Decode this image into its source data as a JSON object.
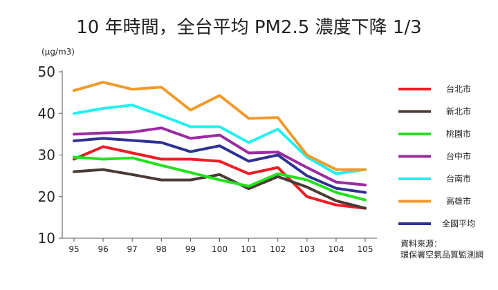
{
  "chart_data": {
    "type": "line",
    "title": "10 年時間，全台平均 PM2.5 濃度下降 1/3",
    "ylabel": "(μg/m3)",
    "xlabel": "",
    "ylim": [
      10,
      50
    ],
    "yticks": [
      "10",
      "20",
      "30",
      "40",
      "50"
    ],
    "categories": [
      "95",
      "96",
      "97",
      "98",
      "99",
      "100",
      "101",
      "102",
      "103",
      "104",
      "105"
    ],
    "grid": false,
    "legend_position": "right",
    "series": [
      {
        "name": "台北市",
        "color": "#ee1c24",
        "values": [
          29.0,
          32.0,
          30.5,
          29.0,
          29.0,
          28.5,
          25.5,
          27.0,
          20.0,
          18.0,
          17.2
        ]
      },
      {
        "name": "新北市",
        "color": "#4a3a36",
        "values": [
          26.0,
          26.5,
          25.3,
          24.0,
          24.0,
          25.3,
          21.9,
          24.8,
          22.3,
          19.0,
          17.2
        ]
      },
      {
        "name": "桃園市",
        "color": "#22e21c",
        "values": [
          29.5,
          29.0,
          29.3,
          27.5,
          25.8,
          24.0,
          22.5,
          25.5,
          24.0,
          21.0,
          19.2
        ]
      },
      {
        "name": "台中市",
        "color": "#9a2ba0",
        "values": [
          35.0,
          35.3,
          35.5,
          36.5,
          34.0,
          34.8,
          30.5,
          30.7,
          27.0,
          23.5,
          22.8
        ]
      },
      {
        "name": "台南市",
        "color": "#22f0f0",
        "values": [
          40.0,
          41.2,
          42.0,
          39.5,
          36.8,
          36.8,
          33.0,
          36.2,
          29.5,
          25.5,
          26.5
        ]
      },
      {
        "name": "高雄市",
        "color": "#f09a2a",
        "values": [
          45.5,
          47.5,
          45.8,
          46.3,
          40.8,
          44.3,
          38.8,
          39.0,
          30.0,
          26.5,
          26.5
        ]
      },
      {
        "name": "全國平均",
        "color": "#2e3192",
        "values": [
          33.4,
          34.0,
          33.5,
          33.0,
          30.8,
          32.2,
          28.5,
          30.0,
          25.0,
          22.0,
          21.0
        ]
      }
    ],
    "source_lines": [
      "資料來源：",
      "環保署空氣品質監測網"
    ]
  }
}
